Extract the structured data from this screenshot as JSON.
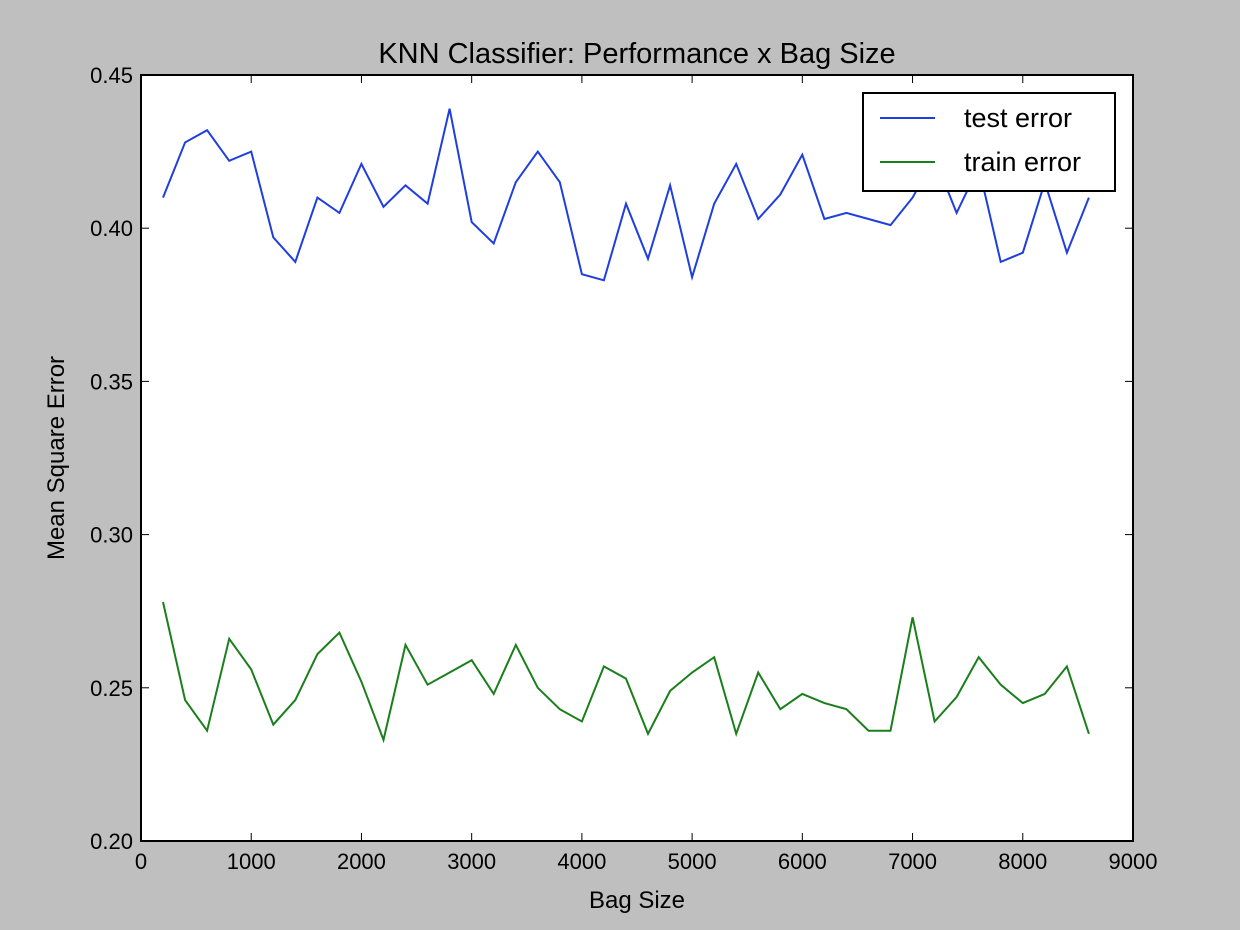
{
  "chart_data": {
    "type": "line",
    "title": "KNN Classifier: Performance x Bag Size",
    "xlabel": "Bag Size",
    "ylabel": "Mean Square Error",
    "xlim": [
      0,
      9000
    ],
    "ylim": [
      0.2,
      0.45
    ],
    "xticks": [
      0,
      1000,
      2000,
      3000,
      4000,
      5000,
      6000,
      7000,
      8000,
      9000
    ],
    "xtick_labels": [
      "0",
      "1000",
      "2000",
      "3000",
      "4000",
      "5000",
      "6000",
      "7000",
      "8000",
      "9000"
    ],
    "yticks": [
      0.2,
      0.25,
      0.3,
      0.35,
      0.4,
      0.45
    ],
    "ytick_labels": [
      "0.20",
      "0.25",
      "0.30",
      "0.35",
      "0.40",
      "0.45"
    ],
    "grid": false,
    "legend_position": "top-right",
    "x": [
      200,
      400,
      600,
      800,
      1000,
      1200,
      1400,
      1600,
      1800,
      2000,
      2200,
      2400,
      2600,
      2800,
      3000,
      3200,
      3400,
      3600,
      3800,
      4000,
      4200,
      4400,
      4600,
      4800,
      5000,
      5200,
      5400,
      5600,
      5800,
      6000,
      6200,
      6400,
      6600,
      6800,
      7000,
      7200,
      7400,
      7600,
      7800,
      8000,
      8200,
      8400,
      8600
    ],
    "series": [
      {
        "name": "test error",
        "color": "#1f3ee0",
        "values": [
          0.41,
          0.428,
          0.432,
          0.422,
          0.425,
          0.397,
          0.389,
          0.41,
          0.405,
          0.421,
          0.407,
          0.414,
          0.408,
          0.439,
          0.402,
          0.395,
          0.415,
          0.425,
          0.415,
          0.385,
          0.383,
          0.408,
          0.39,
          0.414,
          0.384,
          0.408,
          0.421,
          0.403,
          0.411,
          0.424,
          0.403,
          0.405,
          0.403,
          0.401,
          0.41,
          0.423,
          0.405,
          0.42,
          0.389,
          0.392,
          0.415,
          0.392,
          0.41
        ]
      },
      {
        "name": "train error",
        "color": "#1a7f1a",
        "values": [
          0.278,
          0.246,
          0.236,
          0.266,
          0.256,
          0.238,
          0.246,
          0.261,
          0.268,
          0.252,
          0.233,
          0.264,
          0.251,
          0.255,
          0.259,
          0.248,
          0.264,
          0.25,
          0.243,
          0.239,
          0.257,
          0.253,
          0.235,
          0.249,
          0.255,
          0.26,
          0.235,
          0.255,
          0.243,
          0.248,
          0.245,
          0.243,
          0.236,
          0.236,
          0.273,
          0.239,
          0.247,
          0.26,
          0.251,
          0.245,
          0.248,
          0.257,
          0.235
        ]
      }
    ]
  }
}
